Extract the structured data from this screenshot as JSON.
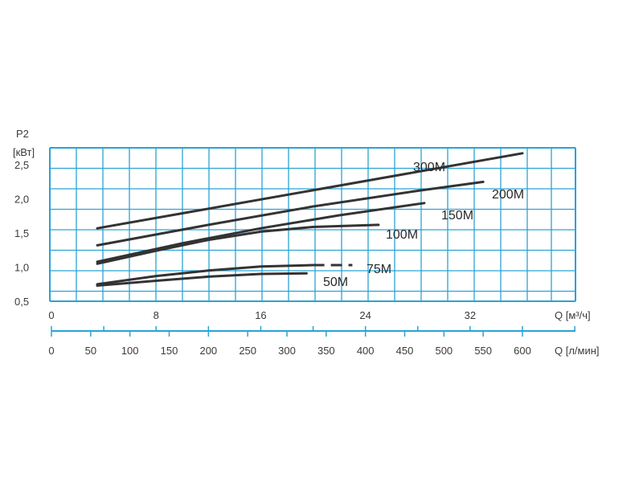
{
  "chart_data": {
    "type": "line",
    "ylabel": "P2",
    "yunit": "[кВт]",
    "xlabel_primary": "Q [м³/ч]",
    "xlabel_secondary": "Q [л/мин]",
    "xlim": [
      0,
      40
    ],
    "ylim": [
      0.5,
      2.75
    ],
    "x_ticks": [
      "0",
      "8",
      "16",
      "24",
      "32"
    ],
    "x_tick_values": [
      0,
      8,
      16,
      24,
      32
    ],
    "x2_ticks": [
      "0",
      "50",
      "100",
      "150",
      "200",
      "250",
      "300",
      "350",
      "400",
      "450",
      "500",
      "550",
      "600"
    ],
    "x2_tick_values": [
      0,
      50,
      100,
      150,
      200,
      250,
      300,
      350,
      400,
      450,
      500,
      550,
      600
    ],
    "y_ticks": [
      "0,5",
      "1,0",
      "1,5",
      "2,0",
      "2,5"
    ],
    "y_tick_values": [
      0.5,
      1.0,
      1.5,
      2.0,
      2.5
    ],
    "grid": true,
    "grid_color": "#2aa3d4",
    "line_color": "#333333",
    "series": [
      {
        "name": "300M",
        "x": [
          3.5,
          36
        ],
        "y": [
          1.57,
          2.67
        ]
      },
      {
        "name": "200M",
        "x": [
          3.5,
          12,
          20,
          28,
          33
        ],
        "y": [
          1.32,
          1.62,
          1.89,
          2.12,
          2.25
        ]
      },
      {
        "name": "150M",
        "x": [
          3.5,
          10,
          16,
          22,
          28.5
        ],
        "y": [
          1.08,
          1.35,
          1.57,
          1.76,
          1.94
        ]
      },
      {
        "name": "100M",
        "x": [
          3.5,
          8,
          12,
          16,
          20,
          25
        ],
        "y": [
          1.05,
          1.24,
          1.4,
          1.52,
          1.59,
          1.62
        ]
      },
      {
        "name": "75M",
        "x": [
          3.5,
          8,
          12,
          16,
          20,
          23
        ],
        "y": [
          0.75,
          0.87,
          0.95,
          1.01,
          1.03,
          1.03
        ],
        "dashed_from": 20
      },
      {
        "name": "50M",
        "x": [
          3.5,
          8,
          12,
          16,
          19.5
        ],
        "y": [
          0.73,
          0.8,
          0.86,
          0.9,
          0.91
        ]
      }
    ]
  }
}
